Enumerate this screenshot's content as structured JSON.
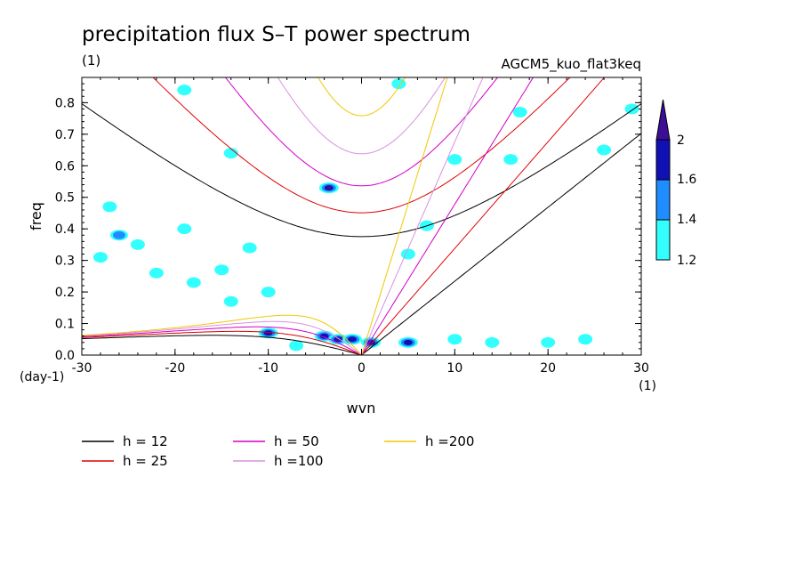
{
  "chart_data": {
    "type": "contour",
    "title": "precipitation flux S–T power spectrum",
    "subtitle_left": "(1)",
    "subtitle_right": "AGCM5_kuo_flat3keq",
    "xlabel": "wvn",
    "ylabel": "freq",
    "x_unit": "(1)",
    "y_unit": "(day-1)",
    "xlim": [
      -30,
      30
    ],
    "ylim": [
      0,
      0.88
    ],
    "x_ticks": [
      -30,
      -20,
      -10,
      0,
      10,
      20,
      30
    ],
    "y_ticks": [
      0.0,
      0.1,
      0.2,
      0.3,
      0.4,
      0.5,
      0.6,
      0.7,
      0.8
    ],
    "x_tick_labels": [
      "-30",
      "-20",
      "-10",
      "0",
      "10",
      "20",
      "30"
    ],
    "y_tick_labels": [
      "0.0",
      "0.1",
      "0.2",
      "0.3",
      "0.4",
      "0.5",
      "0.6",
      "0.7",
      "0.8"
    ],
    "contour_levels": [
      1.2,
      1.4,
      1.6,
      2
    ],
    "colorbar_labels": [
      "2",
      "1.6",
      "1.4",
      "1.2"
    ],
    "fill_colors": [
      "#33ffff",
      "#1f8cff",
      "#1010b4",
      "#3c0f96"
    ],
    "dispersion_curves": [
      {
        "name": "h = 12",
        "label": "h = 12",
        "h": 12,
        "color": "#000000"
      },
      {
        "name": "h = 25",
        "label": "h = 25",
        "h": 25,
        "color": "#e00000"
      },
      {
        "name": "h = 50",
        "label": "h = 50",
        "h": 50,
        "color": "#d400c8"
      },
      {
        "name": "h = 100",
        "label": "h =100",
        "h": 100,
        "color": "#d890e0"
      },
      {
        "name": "h = 200",
        "label": "h =200",
        "h": 200,
        "color": "#f0c800"
      }
    ],
    "spectral_blobs": [
      {
        "x": -26,
        "y": 0.38,
        "level": 1.4
      },
      {
        "x": -24,
        "y": 0.35,
        "level": 1.2
      },
      {
        "x": -28,
        "y": 0.31,
        "level": 1.2
      },
      {
        "x": -27,
        "y": 0.47,
        "level": 1.2
      },
      {
        "x": -22,
        "y": 0.26,
        "level": 1.2
      },
      {
        "x": -18,
        "y": 0.23,
        "level": 1.2
      },
      {
        "x": -15,
        "y": 0.27,
        "level": 1.2
      },
      {
        "x": -12,
        "y": 0.34,
        "level": 1.2
      },
      {
        "x": -19,
        "y": 0.4,
        "level": 1.2
      },
      {
        "x": -14,
        "y": 0.17,
        "level": 1.2
      },
      {
        "x": -10,
        "y": 0.2,
        "level": 1.2
      },
      {
        "x": -19,
        "y": 0.84,
        "level": 1.2
      },
      {
        "x": -14,
        "y": 0.64,
        "level": 1.2
      },
      {
        "x": -3.5,
        "y": 0.53,
        "level": 2
      },
      {
        "x": 4,
        "y": 0.86,
        "level": 1.2
      },
      {
        "x": 10,
        "y": 0.62,
        "level": 1.2
      },
      {
        "x": 17,
        "y": 0.77,
        "level": 1.2
      },
      {
        "x": 26,
        "y": 0.65,
        "level": 1.2
      },
      {
        "x": 29,
        "y": 0.78,
        "level": 1.2
      },
      {
        "x": 7,
        "y": 0.41,
        "level": 1.2
      },
      {
        "x": 5,
        "y": 0.32,
        "level": 1.2
      },
      {
        "x": 16,
        "y": 0.62,
        "level": 1.2
      },
      {
        "x": -10,
        "y": 0.07,
        "level": 1.6
      },
      {
        "x": -4,
        "y": 0.06,
        "level": 1.6
      },
      {
        "x": -2.5,
        "y": 0.05,
        "level": 2
      },
      {
        "x": -1,
        "y": 0.05,
        "level": 1.6
      },
      {
        "x": 1,
        "y": 0.04,
        "level": 1.6
      },
      {
        "x": 5,
        "y": 0.04,
        "level": 1.6
      },
      {
        "x": 10,
        "y": 0.05,
        "level": 1.2
      },
      {
        "x": 14,
        "y": 0.04,
        "level": 1.2
      },
      {
        "x": 20,
        "y": 0.04,
        "level": 1.2
      },
      {
        "x": 24,
        "y": 0.05,
        "level": 1.2
      },
      {
        "x": -7,
        "y": 0.03,
        "level": 1.2
      }
    ]
  }
}
